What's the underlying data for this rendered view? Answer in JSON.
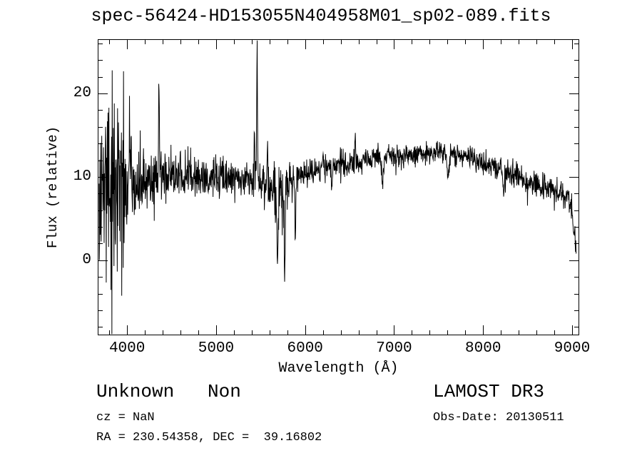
{
  "chart_data": {
    "type": "line",
    "title": "spec-56424-HD153055N404958M01_sp02-089.fits",
    "xlabel": "Wavelength (Å)",
    "ylabel": "Flux (relative)",
    "xlim": [
      3670,
      9080
    ],
    "ylim": [
      -9,
      26.5
    ],
    "xticks": [
      4000,
      5000,
      6000,
      7000,
      8000,
      9000
    ],
    "yticks": [
      0,
      10,
      20
    ],
    "x_minor_step": 200,
    "y_minor_step": 2,
    "grid": false,
    "legend": false,
    "line_color": "#000000",
    "background": "#ffffff",
    "series": [
      {
        "name": "spectrum",
        "n_points": 1600,
        "x_start": 3685,
        "x_end": 9045,
        "seed": 20130511,
        "continuum": [
          [
            3685,
            6
          ],
          [
            3720,
            8
          ],
          [
            3800,
            9
          ],
          [
            3900,
            9
          ],
          [
            4000,
            9.5
          ],
          [
            4150,
            9.5
          ],
          [
            4300,
            10
          ],
          [
            4500,
            10.2
          ],
          [
            4700,
            10.3
          ],
          [
            4900,
            10
          ],
          [
            5100,
            9.8
          ],
          [
            5300,
            9.5
          ],
          [
            5500,
            9.2
          ],
          [
            5650,
            8.5
          ],
          [
            5750,
            8.8
          ],
          [
            5900,
            9.8
          ],
          [
            6100,
            10.8
          ],
          [
            6300,
            11.2
          ],
          [
            6500,
            11.3
          ],
          [
            6700,
            12
          ],
          [
            6900,
            12.6
          ],
          [
            7100,
            12.4
          ],
          [
            7300,
            12.6
          ],
          [
            7500,
            13
          ],
          [
            7700,
            12.7
          ],
          [
            7900,
            12.2
          ],
          [
            8100,
            11.3
          ],
          [
            8300,
            10.4
          ],
          [
            8500,
            9.5
          ],
          [
            8700,
            8.7
          ],
          [
            8900,
            7.8
          ],
          [
            8980,
            7.2
          ],
          [
            9010,
            4
          ],
          [
            9045,
            0.5
          ]
        ],
        "noise_sigma": [
          [
            3685,
            10
          ],
          [
            3750,
            9.5
          ],
          [
            3850,
            8
          ],
          [
            3950,
            6
          ],
          [
            4050,
            4.5
          ],
          [
            4200,
            3.2
          ],
          [
            4400,
            2.8
          ],
          [
            4700,
            2.4
          ],
          [
            5000,
            2.1
          ],
          [
            5300,
            1.9
          ],
          [
            5500,
            2.1
          ],
          [
            5650,
            3.0
          ],
          [
            5800,
            2.2
          ],
          [
            6000,
            1.5
          ],
          [
            6300,
            1.3
          ],
          [
            6600,
            1.15
          ],
          [
            7000,
            1.05
          ],
          [
            7400,
            1.0
          ],
          [
            7800,
            1.1
          ],
          [
            8200,
            1.3
          ],
          [
            8600,
            1.45
          ],
          [
            9045,
            1.5
          ]
        ],
        "spikes": [
          [
            4046,
            5,
            4
          ],
          [
            4358,
            10,
            5
          ],
          [
            5430,
            7,
            4
          ],
          [
            5461,
            17,
            4
          ],
          [
            5577,
            6,
            4
          ],
          [
            5690,
            -9,
            8
          ],
          [
            5770,
            -11,
            6
          ],
          [
            5890,
            -6,
            6
          ],
          [
            6300,
            -2.5,
            6
          ],
          [
            6563,
            2.5,
            5
          ],
          [
            6870,
            -3,
            10
          ],
          [
            7605,
            -3,
            12
          ],
          [
            8230,
            -2,
            10
          ]
        ]
      }
    ]
  },
  "footer": {
    "class_label": "Unknown   Non",
    "survey": "LAMOST DR3",
    "cz": "cz = NaN",
    "ra_dec": "RA = 230.54358, DEC =  39.16802",
    "obs_date": "Obs-Date: 20130511"
  }
}
